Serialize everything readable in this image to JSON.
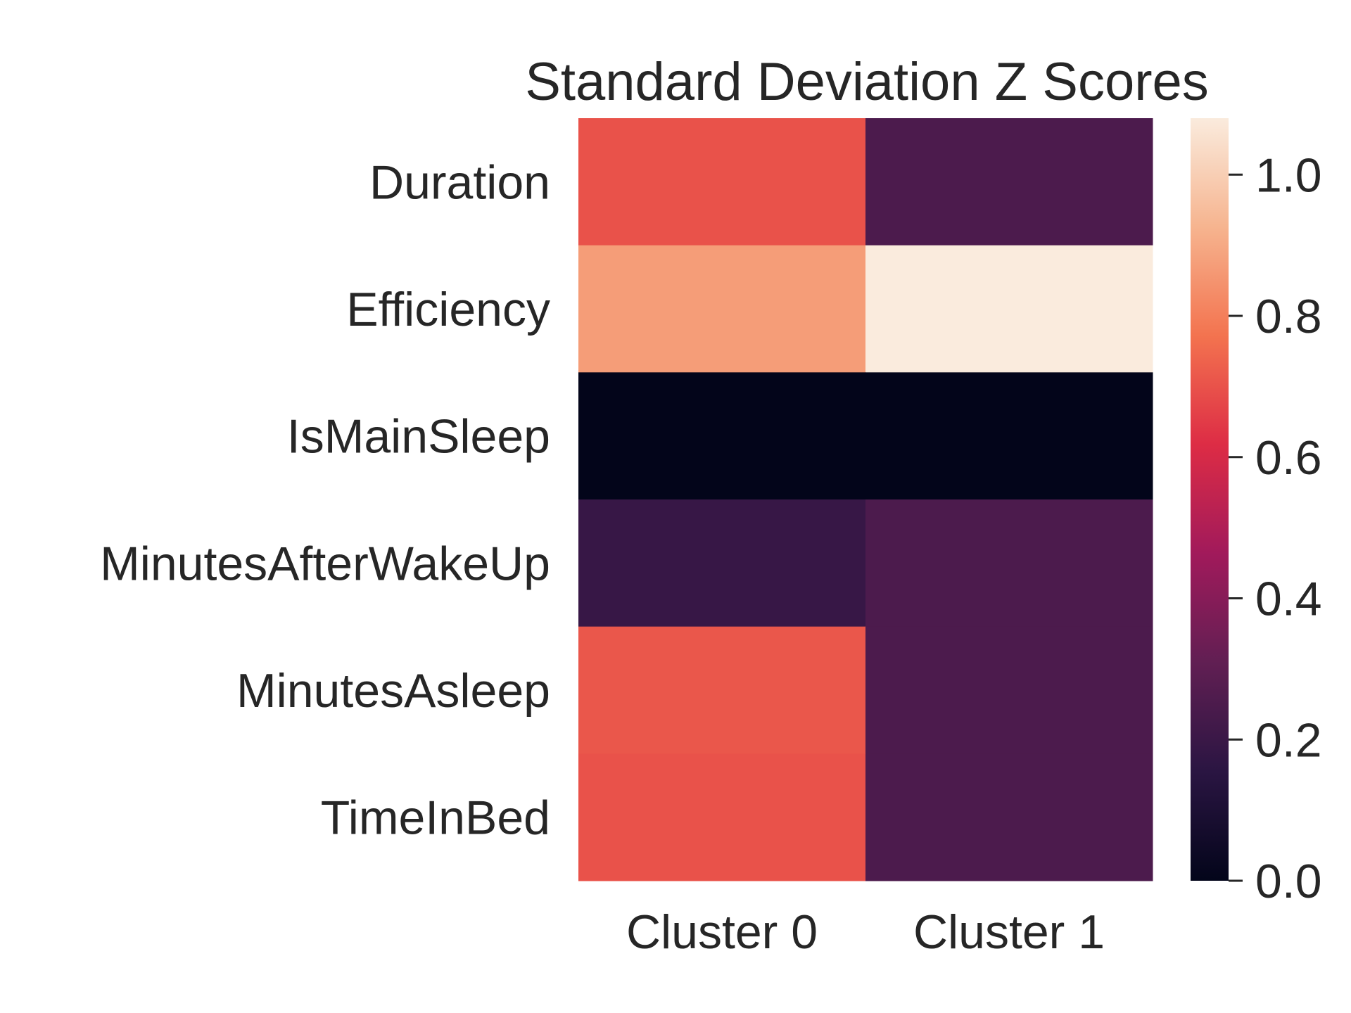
{
  "chart_data": {
    "type": "heatmap",
    "title": "Standard Deviation Z Scores",
    "xlabel": "",
    "ylabel": "",
    "columns": [
      "Cluster 0",
      "Cluster 1"
    ],
    "rows": [
      "Duration",
      "Efficiency",
      "IsMainSleep",
      "MinutesAfterWakeUp",
      "MinutesAsleep",
      "TimeInBed"
    ],
    "values": [
      [
        0.7,
        0.25
      ],
      [
        0.87,
        1.08
      ],
      [
        0.0,
        0.0
      ],
      [
        0.19,
        0.25
      ],
      [
        0.71,
        0.25
      ],
      [
        0.7,
        0.25
      ]
    ],
    "colorbar": {
      "min": 0.0,
      "max": 1.08,
      "ticks": [
        "0.0",
        "0.2",
        "0.4",
        "0.6",
        "0.8",
        "1.0"
      ],
      "colormap": "rocket",
      "stops": [
        "#03051a",
        "#2a1542",
        "#611f53",
        "#a11a5b",
        "#dd2c45",
        "#f3734f",
        "#f6b48f",
        "#faebdd"
      ]
    },
    "grid": false,
    "legend": "colorbar-right"
  }
}
